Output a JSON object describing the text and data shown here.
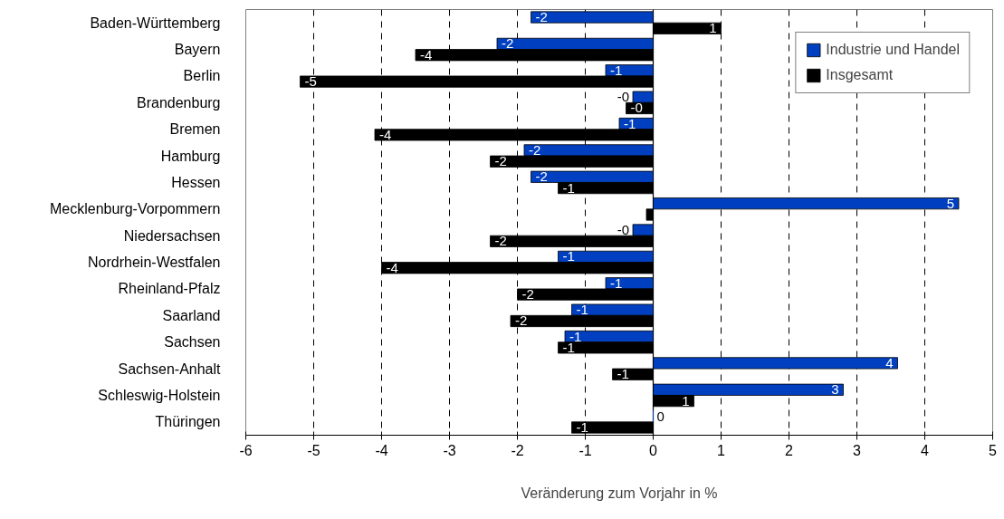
{
  "chart_data": {
    "type": "bar",
    "orientation": "horizontal",
    "categories": [
      "Baden-Württemberg",
      "Bayern",
      "Berlin",
      "Brandenburg",
      "Bremen",
      "Hamburg",
      "Hessen",
      "Mecklenburg-Vorpommern",
      "Niedersachsen",
      "Nordrhein-Westfalen",
      "Rheinland-Pfalz",
      "Saarland",
      "Sachsen",
      "Sachsen-Anhalt",
      "Schleswig-Holstein",
      "Thüringen"
    ],
    "series": [
      {
        "name": "Industrie und Handel",
        "color": "#0040c0",
        "values": [
          -1.8,
          -2.3,
          -0.7,
          -0.3,
          -0.5,
          -1.9,
          -1.8,
          4.5,
          -0.3,
          -1.4,
          -0.7,
          -1.2,
          -1.3,
          3.6,
          2.8,
          0
        ],
        "value_labels": [
          "-2",
          "-2",
          "-1",
          "-0",
          "-1",
          "-2",
          "-2",
          "5",
          "-0",
          "-1",
          "-1",
          "-1",
          "-1",
          "4",
          "3",
          "0"
        ]
      },
      {
        "name": "Insgesamt",
        "color": "#000000",
        "values": [
          1.0,
          -3.5,
          -5.2,
          -0.4,
          -4.1,
          -2.4,
          -1.4,
          -0.1,
          -2.4,
          -4.0,
          -2.0,
          -2.1,
          -1.4,
          -0.6,
          0.6,
          -1.2
        ],
        "value_labels": [
          "1",
          "-4",
          "-5",
          "-0",
          "-4",
          "-2",
          "-1",
          null,
          "-2",
          "-4",
          "-2",
          "-2",
          "-1",
          "-1",
          "1",
          "-1"
        ]
      }
    ],
    "xlim": [
      -6,
      5
    ],
    "xticks": [
      -6,
      -5,
      -4,
      -3,
      -2,
      -1,
      0,
      1,
      2,
      3,
      4,
      5
    ],
    "xlabel": "Veränderung zum Vorjahr in %",
    "grid": "x",
    "legend": "top right"
  }
}
